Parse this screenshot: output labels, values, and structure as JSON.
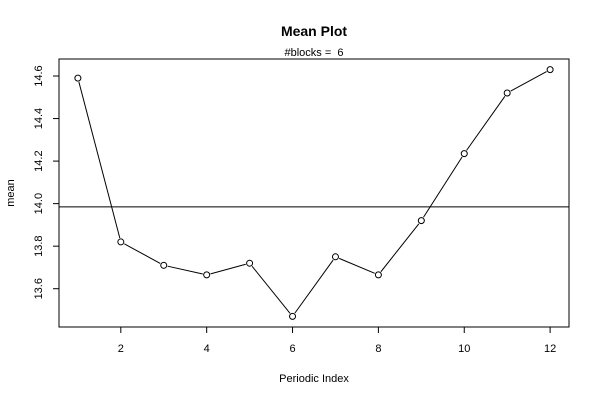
{
  "chart_data": {
    "type": "line",
    "title": "Mean Plot",
    "subtitle": "#blocks =  6",
    "xlabel": "Periodic Index",
    "ylabel": "mean",
    "x": [
      1,
      2,
      3,
      4,
      5,
      6,
      7,
      8,
      9,
      10,
      11,
      12
    ],
    "values": [
      14.59,
      13.82,
      13.71,
      13.665,
      13.72,
      13.47,
      13.75,
      13.665,
      13.92,
      14.235,
      14.52,
      14.63
    ],
    "reference_line": 13.985,
    "xlim": [
      0.56,
      12.44
    ],
    "ylim": [
      13.42,
      14.68
    ],
    "x_ticks": [
      2,
      4,
      6,
      8,
      10,
      12
    ],
    "y_ticks": [
      13.6,
      13.8,
      14.0,
      14.2,
      14.4,
      14.6
    ],
    "grid": false,
    "legend": "none",
    "line_color": "#000000",
    "marker": "open-circle"
  }
}
